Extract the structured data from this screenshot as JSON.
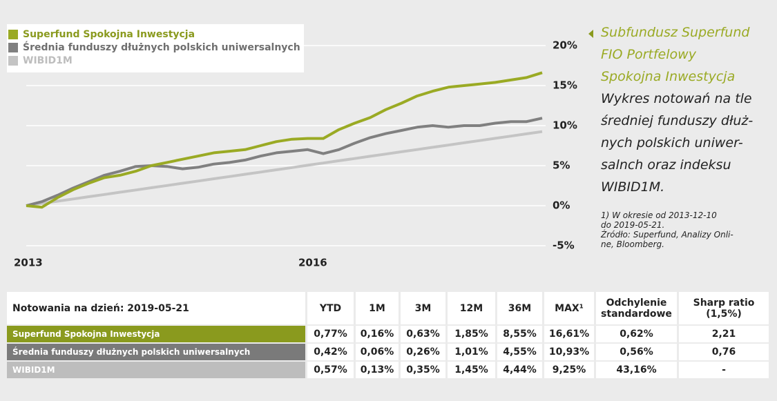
{
  "chart_data": {
    "type": "line",
    "x": [
      0,
      1,
      2,
      3,
      4,
      5,
      6,
      7,
      8,
      9,
      10,
      11,
      12,
      13,
      14,
      15,
      16,
      17,
      18,
      19,
      20,
      21,
      22,
      23,
      24,
      25,
      26,
      27,
      28,
      29,
      30,
      31,
      32,
      33
    ],
    "xlim": [
      0,
      33
    ],
    "xticks": [
      {
        "value": 0,
        "label": "2013"
      },
      {
        "value": 18.2,
        "label": "2016"
      }
    ],
    "ylim": [
      -5,
      20
    ],
    "yticks": [
      {
        "value": -5,
        "label": "-5%"
      },
      {
        "value": 0,
        "label": "0%"
      },
      {
        "value": 5,
        "label": "5%"
      },
      {
        "value": 10,
        "label": "10%"
      },
      {
        "value": 15,
        "label": "15%"
      },
      {
        "value": 20,
        "label": "20%"
      }
    ],
    "grid": true,
    "legend": "top-left",
    "series": [
      {
        "name": "Superfund Spokojna Inwestycja",
        "color": "#9aaa24",
        "values": [
          0,
          -0.2,
          1.0,
          2.0,
          2.8,
          3.5,
          3.8,
          4.3,
          5.0,
          5.4,
          5.8,
          6.2,
          6.6,
          6.8,
          7.0,
          7.5,
          8.0,
          8.3,
          8.4,
          8.4,
          9.5,
          10.3,
          11.0,
          12.0,
          12.8,
          13.7,
          14.3,
          14.8,
          15.0,
          15.2,
          15.4,
          15.7,
          16.0,
          16.61
        ]
      },
      {
        "name": "Średnia funduszy dłużnych polskich uniwersalnych",
        "color": "#808080",
        "values": [
          0,
          0.5,
          1.3,
          2.2,
          3.0,
          3.8,
          4.3,
          4.9,
          5.0,
          4.9,
          4.6,
          4.8,
          5.2,
          5.4,
          5.7,
          6.2,
          6.6,
          6.8,
          7.0,
          6.5,
          7.0,
          7.8,
          8.5,
          9.0,
          9.4,
          9.8,
          10.0,
          9.8,
          10.0,
          10.0,
          10.3,
          10.5,
          10.5,
          10.93
        ]
      },
      {
        "name": "WIBID1M",
        "color": "#c4c4c4",
        "values": [
          0,
          0.28,
          0.56,
          0.84,
          1.12,
          1.4,
          1.68,
          1.96,
          2.24,
          2.52,
          2.8,
          3.08,
          3.36,
          3.64,
          3.92,
          4.2,
          4.48,
          4.76,
          5.05,
          5.33,
          5.61,
          5.89,
          6.17,
          6.45,
          6.73,
          7.01,
          7.29,
          7.57,
          7.85,
          8.13,
          8.41,
          8.69,
          8.97,
          9.25
        ]
      }
    ]
  },
  "side": {
    "fund": [
      "Subfundusz Superfund",
      "FIO Portfelowy",
      "Spokojna Inwestycja"
    ],
    "description": [
      "Wykres notowań na tle",
      "średniej funduszy dłuż-",
      "nych polskich uniwer-",
      "salnch oraz indeksu",
      "WIBID1M."
    ],
    "footnote": [
      "1) W okresie od 2013-12-10",
      "do 2019-05-21.",
      "Źródło: Superfund, Analizy Onli-",
      "ne, Bloomberg."
    ]
  },
  "table": {
    "header": [
      "Notowania na dzień: 2019-05-21",
      "YTD",
      "1M",
      "3M",
      "12M",
      "36M",
      "MAX¹",
      "Odchylenie standardowe",
      "Sharp ratio (1,5%)"
    ],
    "rows": [
      [
        "Superfund Spokojna Inwestycja",
        "0,77%",
        "0,16%",
        "0,63%",
        "1,85%",
        "8,55%",
        "16,61%",
        "0,62%",
        "2,21"
      ],
      [
        "Średnia funduszy dłużnych polskich uniwersalnych",
        "0,42%",
        "0,06%",
        "0,26%",
        "1,01%",
        "4,55%",
        "10,93%",
        "0,56%",
        "0,76"
      ],
      [
        "WIBID1M",
        "0,57%",
        "0,13%",
        "0,35%",
        "1,45%",
        "4,44%",
        "9,25%",
        "43,16%",
        "-"
      ]
    ]
  }
}
